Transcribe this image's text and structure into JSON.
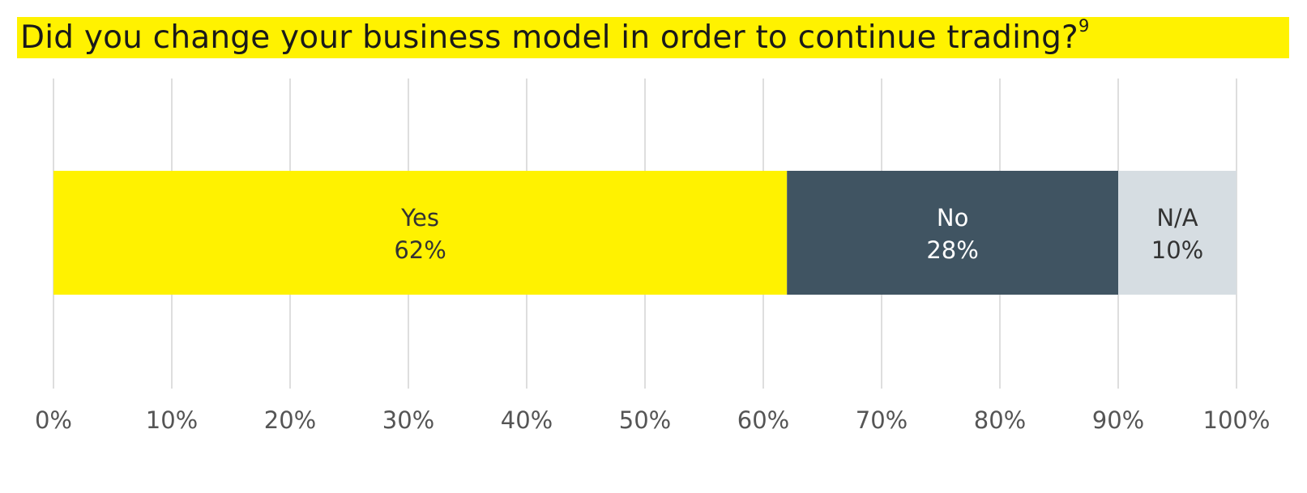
{
  "title": {
    "text": "Did you change your business model in order to continue trading?",
    "footnote": "9"
  },
  "colors": {
    "title_bg": "#FFF200",
    "yes": "#FFF200",
    "no": "#405462",
    "na": "#D6DDE2",
    "grid": "#CCCCCC",
    "tick_text": "#555555"
  },
  "chart_data": {
    "type": "bar",
    "orientation": "horizontal",
    "stacked": true,
    "title": "Did you change your business model in order to continue trading?",
    "xlabel": "",
    "ylabel": "",
    "xlim": [
      0,
      100
    ],
    "grid": true,
    "x_ticks": [
      "0%",
      "10%",
      "20%",
      "30%",
      "40%",
      "50%",
      "60%",
      "70%",
      "80%",
      "90%",
      "100%"
    ],
    "series": [
      {
        "name": "Yes",
        "value": 62,
        "label": "62%",
        "color": "#FFF200",
        "text_color": "#333333"
      },
      {
        "name": "No",
        "value": 28,
        "label": "28%",
        "color": "#405462",
        "text_color": "#FFFFFF"
      },
      {
        "name": "N/A",
        "value": 10,
        "label": "10%",
        "color": "#D6DDE2",
        "text_color": "#333333"
      }
    ]
  }
}
